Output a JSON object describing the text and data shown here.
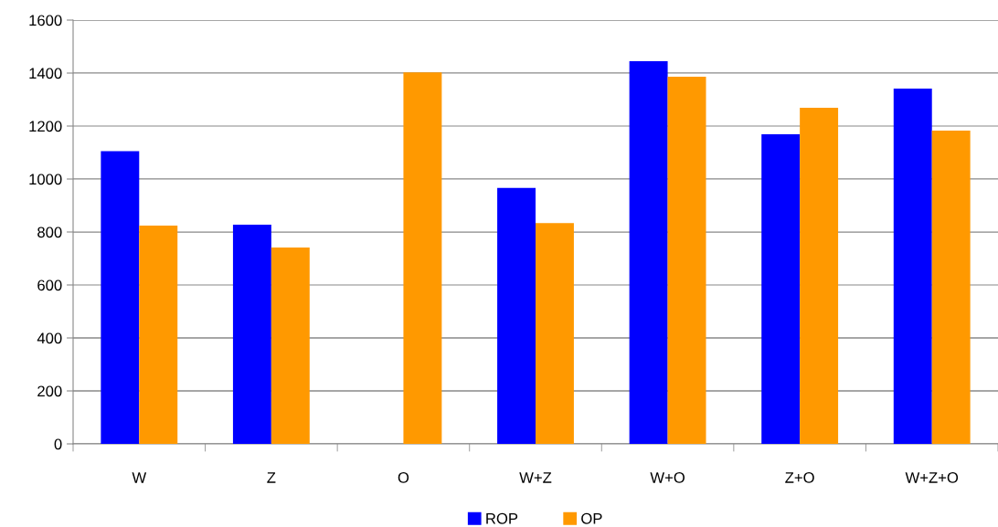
{
  "chart_data": {
    "type": "bar",
    "categories": [
      "W",
      "Z",
      "O",
      "W+Z",
      "W+O",
      "Z+O",
      "W+Z+O"
    ],
    "series": [
      {
        "name": "ROP",
        "color": "#0000ff",
        "values": [
          1105,
          828,
          null,
          966,
          1445,
          1169,
          1341
        ]
      },
      {
        "name": "OP",
        "color": "#ff9900",
        "values": [
          824,
          741,
          1403,
          834,
          1386,
          1269,
          1183
        ]
      }
    ],
    "ylim": [
      0,
      1600
    ],
    "yticks": [
      0,
      200,
      400,
      600,
      800,
      1000,
      1200,
      1400,
      1600
    ],
    "grid": "y",
    "legend": "bottom"
  }
}
